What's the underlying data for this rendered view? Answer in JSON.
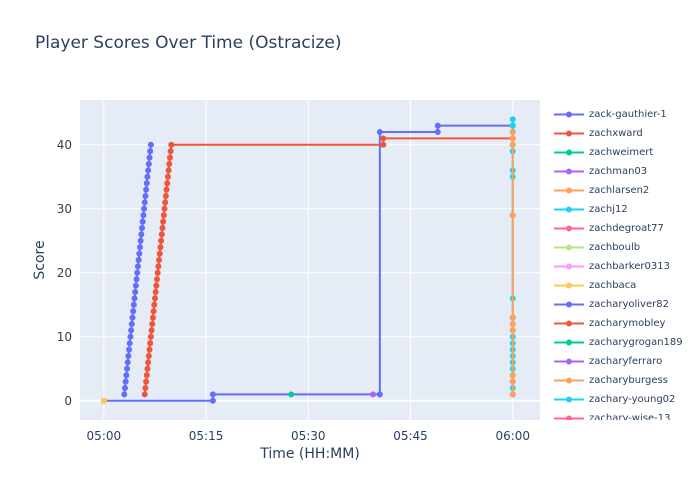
{
  "chart_data": {
    "type": "line",
    "title": "Player Scores Over Time (Ostracize)",
    "xlabel": "Time (HH:MM)",
    "ylabel": "Score",
    "x_ticks": [
      "05:00",
      "05:15",
      "05:30",
      "05:45",
      "06:00"
    ],
    "x_tick_minutes": [
      0,
      15,
      30,
      45,
      60
    ],
    "xlim_minutes": [
      -3.5,
      64
    ],
    "y_ticks": [
      0,
      10,
      20,
      30,
      40
    ],
    "ylim": [
      -3,
      47
    ],
    "grid": true,
    "legend_placement": "right",
    "series": [
      {
        "name": "zack-gauthier-1",
        "color": "#636efa",
        "points": [
          [
            0,
            0
          ],
          [
            16,
            0
          ],
          [
            16,
            1
          ],
          [
            40.5,
            1
          ],
          [
            40.5,
            42
          ],
          [
            49,
            42
          ],
          [
            49,
            43
          ],
          [
            60,
            43
          ]
        ]
      },
      {
        "name": "zachxward",
        "color": "#ef553b",
        "points": [
          [
            6.0,
            1
          ],
          [
            6.1,
            2
          ],
          [
            6.2,
            3
          ],
          [
            6.3,
            4
          ],
          [
            6.4,
            5
          ],
          [
            6.5,
            6
          ],
          [
            6.6,
            7
          ],
          [
            6.7,
            8
          ],
          [
            6.8,
            9
          ],
          [
            6.9,
            10
          ],
          [
            7.0,
            11
          ],
          [
            7.1,
            12
          ],
          [
            7.2,
            13
          ],
          [
            7.3,
            14
          ],
          [
            7.4,
            15
          ],
          [
            7.5,
            16
          ],
          [
            7.6,
            17
          ],
          [
            7.7,
            18
          ],
          [
            7.8,
            19
          ],
          [
            7.9,
            20
          ],
          [
            8.0,
            21
          ],
          [
            8.1,
            22
          ],
          [
            8.2,
            23
          ],
          [
            8.3,
            24
          ],
          [
            8.4,
            25
          ],
          [
            8.5,
            26
          ],
          [
            8.6,
            27
          ],
          [
            8.7,
            28
          ],
          [
            8.8,
            29
          ],
          [
            8.9,
            30
          ],
          [
            9.0,
            31
          ],
          [
            9.1,
            32
          ],
          [
            9.2,
            33
          ],
          [
            9.3,
            34
          ],
          [
            9.4,
            35
          ],
          [
            9.5,
            36
          ],
          [
            9.6,
            37
          ],
          [
            9.7,
            38
          ],
          [
            9.8,
            39
          ],
          [
            9.9,
            40
          ],
          [
            41.0,
            40
          ],
          [
            41.0,
            41
          ],
          [
            60,
            41
          ]
        ]
      },
      {
        "name": "zachweimert",
        "color": "#00cc96",
        "points": [
          [
            27.5,
            1
          ]
        ]
      },
      {
        "name": "zachman03",
        "color": "#ab63fa",
        "points": [
          [
            39.5,
            1
          ]
        ]
      },
      {
        "name": "zachlarsen2",
        "color": "#ffa15a",
        "points": [
          [
            0,
            0
          ]
        ]
      },
      {
        "name": "zachj12",
        "color": "#19d3f3",
        "points": [
          [
            60,
            1
          ],
          [
            60,
            2
          ],
          [
            60,
            3
          ],
          [
            60,
            4
          ],
          [
            60,
            5
          ],
          [
            60,
            6
          ],
          [
            60,
            7
          ],
          [
            60,
            8
          ],
          [
            60,
            9
          ],
          [
            60,
            10
          ],
          [
            60,
            11
          ],
          [
            60,
            12
          ],
          [
            60,
            13
          ],
          [
            60,
            16
          ],
          [
            60,
            29
          ],
          [
            60,
            35
          ],
          [
            60,
            36
          ],
          [
            60,
            39
          ],
          [
            60,
            40
          ],
          [
            60,
            41
          ],
          [
            60,
            42
          ],
          [
            60,
            43
          ],
          [
            60,
            44
          ]
        ]
      },
      {
        "name": "zachdegroat77",
        "color": "#ff6692",
        "points": []
      },
      {
        "name": "zachboulb",
        "color": "#b6e880",
        "points": []
      },
      {
        "name": "zachbarker0313",
        "color": "#ff97ff",
        "points": []
      },
      {
        "name": "zachbaca",
        "color": "#fecb52",
        "points": [
          [
            0,
            0
          ]
        ]
      },
      {
        "name": "zacharyoliver82",
        "color": "#636efa",
        "points": [
          [
            3.0,
            1
          ],
          [
            3.1,
            2
          ],
          [
            3.2,
            3
          ],
          [
            3.3,
            4
          ],
          [
            3.4,
            5
          ],
          [
            3.5,
            6
          ],
          [
            3.6,
            7
          ],
          [
            3.7,
            8
          ],
          [
            3.8,
            9
          ],
          [
            3.9,
            10
          ],
          [
            4.0,
            11
          ],
          [
            4.1,
            12
          ],
          [
            4.2,
            13
          ],
          [
            4.3,
            14
          ],
          [
            4.4,
            15
          ],
          [
            4.5,
            16
          ],
          [
            4.6,
            17
          ],
          [
            4.7,
            18
          ],
          [
            4.8,
            19
          ],
          [
            4.9,
            20
          ],
          [
            5.0,
            21
          ],
          [
            5.1,
            22
          ],
          [
            5.2,
            23
          ],
          [
            5.3,
            24
          ],
          [
            5.4,
            25
          ],
          [
            5.5,
            26
          ],
          [
            5.6,
            27
          ],
          [
            5.7,
            28
          ],
          [
            5.8,
            29
          ],
          [
            5.9,
            30
          ],
          [
            6.0,
            31
          ],
          [
            6.1,
            32
          ],
          [
            6.2,
            33
          ],
          [
            6.3,
            34
          ],
          [
            6.4,
            35
          ],
          [
            6.5,
            36
          ],
          [
            6.6,
            37
          ],
          [
            6.7,
            38
          ],
          [
            6.8,
            39
          ],
          [
            6.9,
            40
          ]
        ]
      },
      {
        "name": "zacharymobley",
        "color": "#ef553b",
        "points": []
      },
      {
        "name": "zacharygrogan189",
        "color": "#00cc96",
        "points": []
      },
      {
        "name": "zacharyferraro",
        "color": "#ab63fa",
        "points": []
      },
      {
        "name": "zacharyburgess",
        "color": "#ffa15a",
        "points": [
          [
            60,
            1
          ],
          [
            60,
            3
          ],
          [
            60,
            4
          ],
          [
            60,
            11
          ],
          [
            60,
            12
          ],
          [
            60,
            13
          ],
          [
            60,
            29
          ],
          [
            60,
            40
          ],
          [
            60,
            41
          ],
          [
            60,
            42
          ]
        ]
      },
      {
        "name": "zachary-young02",
        "color": "#19d3f3",
        "points": []
      },
      {
        "name": "zachary-wise-13",
        "color": "#ff6692",
        "points": []
      }
    ]
  }
}
